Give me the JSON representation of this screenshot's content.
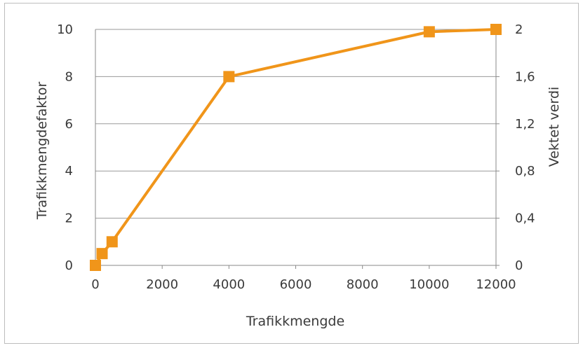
{
  "chart_data": {
    "type": "line",
    "title": "",
    "xlabel": "Trafikkmengde",
    "ylabel": "Trafikkmengdefaktor",
    "y2label": "Vektet verdi",
    "xlim": [
      0,
      12000
    ],
    "ylim": [
      0,
      10
    ],
    "y2lim": [
      0,
      2
    ],
    "x_ticks": [
      "0",
      "2000",
      "4000",
      "6000",
      "8000",
      "10000",
      "12000"
    ],
    "y_ticks": [
      "0",
      "2",
      "4",
      "6",
      "8",
      "10"
    ],
    "y2_ticks": [
      "0",
      "0,4",
      "0,8",
      "1,2",
      "1,6",
      "2"
    ],
    "grid": "horizontal",
    "legend": "none",
    "line_color": "#F0951A",
    "series": [
      {
        "x": [
          0,
          200,
          500,
          4000,
          10000,
          12000
        ],
        "values": [
          0,
          0.5,
          1,
          8,
          9.9,
          10
        ]
      }
    ]
  }
}
